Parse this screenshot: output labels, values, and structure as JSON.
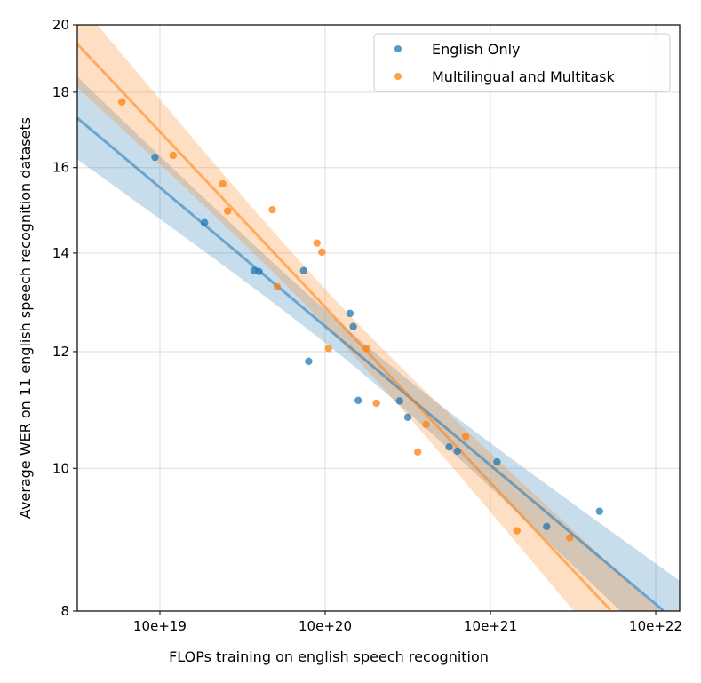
{
  "chart_data": {
    "type": "scatter",
    "title": "",
    "xlabel": "FLOPs training on english speech recognition",
    "ylabel": "Average WER on 11 english speech recognition datasets",
    "x_scale": "log",
    "y_scale": "log",
    "x_note": "x values are log10 of the tick-label quantity (tick '10e+19' at 19)",
    "xlim": [
      18.5,
      22.145
    ],
    "ylim": [
      8,
      20
    ],
    "x_ticks": [
      {
        "value": 19,
        "label": "10e+19"
      },
      {
        "value": 20,
        "label": "10e+20"
      },
      {
        "value": 21,
        "label": "10e+21"
      },
      {
        "value": 22,
        "label": "10e+22"
      }
    ],
    "y_ticks": [
      {
        "value": 8,
        "label": "8"
      },
      {
        "value": 10,
        "label": "10"
      },
      {
        "value": 12,
        "label": "12"
      },
      {
        "value": 14,
        "label": "14"
      },
      {
        "value": 16,
        "label": "16"
      },
      {
        "value": 18,
        "label": "18"
      },
      {
        "value": 20,
        "label": "20"
      }
    ],
    "grid": true,
    "legend_position": "top-right",
    "regression": "linear fit in log-log space with 95% confidence band",
    "series": [
      {
        "name": "English Only",
        "color": "#1f77b4",
        "x": [
          18.97,
          19.27,
          19.57,
          19.6,
          19.87,
          19.9,
          20.15,
          20.17,
          20.2,
          20.45,
          20.5,
          20.75,
          20.8,
          21.04,
          21.34,
          21.66
        ],
        "y": [
          16.26,
          14.68,
          13.62,
          13.6,
          13.62,
          11.82,
          12.74,
          12.48,
          11.12,
          11.11,
          10.83,
          10.34,
          10.27,
          10.1,
          9.13,
          9.35
        ]
      },
      {
        "name": "Multilingual and Multitask",
        "color": "#ff7f0e",
        "x": [
          18.77,
          19.08,
          19.38,
          19.41,
          19.68,
          19.95,
          19.98,
          19.71,
          20.02,
          20.25,
          20.31,
          20.56,
          20.61,
          20.85,
          21.16,
          21.48
        ],
        "y": [
          17.73,
          16.31,
          15.6,
          14.95,
          14.98,
          14.22,
          14.02,
          13.28,
          12.06,
          12.06,
          11.07,
          10.26,
          10.71,
          10.51,
          9.07,
          8.97
        ]
      }
    ]
  }
}
